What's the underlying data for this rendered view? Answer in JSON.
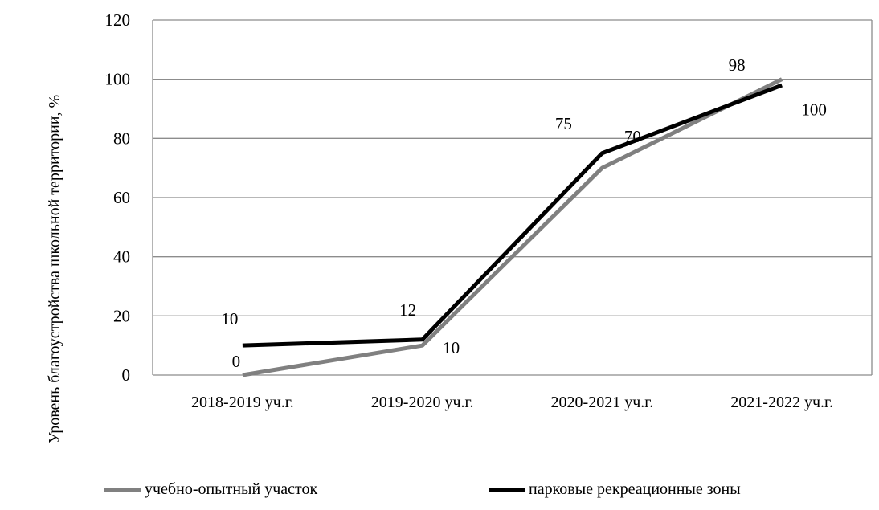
{
  "chart_data": {
    "type": "line",
    "categories": [
      "2018-2019 уч.г.",
      "2019-2020 уч.г.",
      "2020-2021 уч.г.",
      "2021-2022 уч.г."
    ],
    "series": [
      {
        "name": "учебно-опытный участок",
        "values": [
          0,
          10,
          70,
          100
        ],
        "color": "#808080",
        "data_labels": [
          "0",
          "10",
          "70",
          "100"
        ]
      },
      {
        "name": "парковые рекреационные зоны",
        "values": [
          10,
          12,
          75,
          98
        ],
        "color": "#000000",
        "data_labels": [
          "10",
          "12",
          "75",
          "98"
        ]
      }
    ],
    "title": "",
    "xlabel": "",
    "ylabel": "Уровень благоустройства школьной территории, %",
    "ylim": [
      0,
      120
    ],
    "yticks": [
      "0",
      "20",
      "40",
      "60",
      "80",
      "100",
      "120"
    ],
    "grid": true,
    "legend_position": "bottom"
  }
}
